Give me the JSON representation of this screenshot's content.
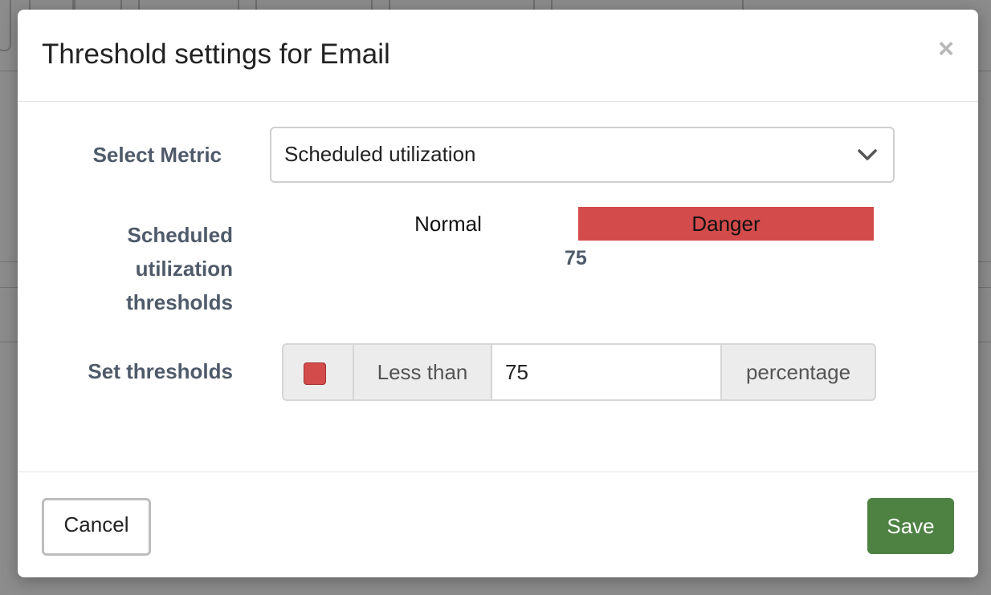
{
  "dialog": {
    "title": "Threshold settings for Email",
    "close_label": "×"
  },
  "form": {
    "metric_label": "Select Metric",
    "metric_value": "Scheduled utilization",
    "thresholds_label_lines": [
      "Scheduled",
      "utilization",
      "thresholds"
    ],
    "bar": {
      "normal_label": "Normal",
      "danger_label": "Danger",
      "threshold_value": "75",
      "danger_color": "#d34b4b"
    },
    "set_label": "Set thresholds",
    "set": {
      "swatch_color": "#d34b4b",
      "operator": "Less than",
      "value": "75",
      "unit": "percentage"
    }
  },
  "footer": {
    "cancel_label": "Cancel",
    "save_label": "Save"
  },
  "colors": {
    "save_button": "#4e8243",
    "danger": "#d34b4b"
  }
}
